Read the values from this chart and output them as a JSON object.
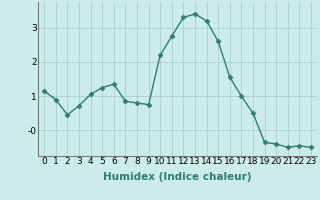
{
  "x": [
    0,
    1,
    2,
    3,
    4,
    5,
    6,
    7,
    8,
    9,
    10,
    11,
    12,
    13,
    14,
    15,
    16,
    17,
    18,
    19,
    20,
    21,
    22,
    23
  ],
  "y": [
    1.15,
    0.9,
    0.45,
    0.72,
    1.05,
    1.25,
    1.35,
    0.85,
    0.8,
    0.75,
    2.2,
    2.75,
    3.3,
    3.4,
    3.2,
    2.6,
    1.55,
    1.0,
    0.5,
    -0.35,
    -0.4,
    -0.5,
    -0.45,
    -0.5
  ],
  "line_color": "#2e7d6e",
  "marker": "D",
  "marker_size": 2.5,
  "bg_color": "#ccecea",
  "grid_color": "#aacfcd",
  "xlabel": "Humidex (Indice chaleur)",
  "ylim": [
    -0.75,
    3.75
  ],
  "xlim": [
    -0.5,
    23.5
  ],
  "xticks": [
    0,
    1,
    2,
    3,
    4,
    5,
    6,
    7,
    8,
    9,
    10,
    11,
    12,
    13,
    14,
    15,
    16,
    17,
    18,
    19,
    20,
    21,
    22,
    23
  ],
  "yticks": [
    0,
    1,
    2,
    3
  ],
  "ytick_labels": [
    "-0",
    "1",
    "2",
    "3"
  ],
  "xlabel_fontsize": 7.5,
  "tick_fontsize": 6.5
}
